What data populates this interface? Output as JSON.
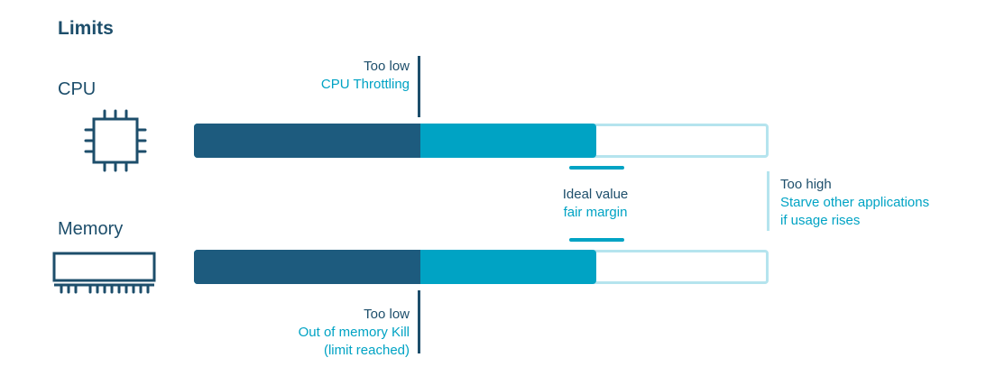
{
  "title": "Limits",
  "resources": {
    "cpu": {
      "label": "CPU",
      "icon": "cpu-chip-icon"
    },
    "memory": {
      "label": "Memory",
      "icon": "memory-module-icon"
    }
  },
  "annotations": {
    "too_low_cpu": {
      "heading": "Too low",
      "detail": "CPU Throttling"
    },
    "ideal": {
      "heading": "Ideal value",
      "detail": "fair margin"
    },
    "too_high": {
      "heading": "Too high",
      "detail_line1": "Starve other applications",
      "detail_line2": "if usage rises"
    },
    "too_low_memory": {
      "heading": "Too low",
      "detail_line1": "Out of memory Kill",
      "detail_line2": "(limit reached)"
    }
  },
  "colors": {
    "dark": "#1d5b7e",
    "accent": "#00a3c4",
    "light": "#b5e4ee",
    "text": "#1d4e6b"
  }
}
